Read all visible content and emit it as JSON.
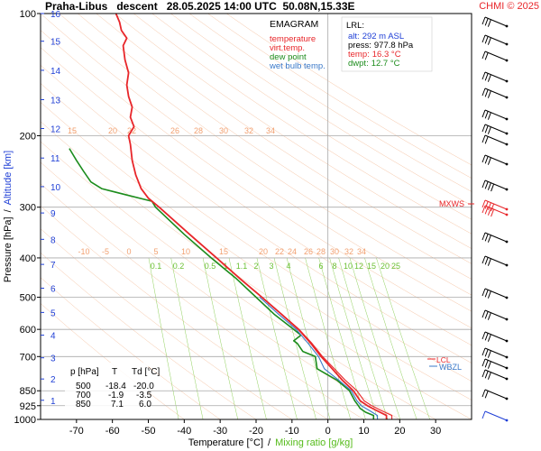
{
  "chart_data": {
    "type": "line",
    "title": "Praha-Libus   descent   28.05.2025 14:00 UTC  50.08N,15.33E",
    "copyright": "CHMI © 2025",
    "diagram_name": "EMAGRAM",
    "legend": [
      {
        "label": "temperature",
        "color": "#e8262a"
      },
      {
        "label": "virt.temp.",
        "color": "#e8262a"
      },
      {
        "label": "dew point",
        "color": "#1c8c1c"
      },
      {
        "label": "wet bulb temp.",
        "color": "#3a78c8"
      }
    ],
    "xlabel": "Temperature [°C]",
    "xlabel_sep": "/",
    "xlabel2": "Mixing ratio [g/kg]",
    "ylabel": "Pressure [hPa]",
    "ylabel_sep": "/",
    "ylabel2": "Altitude [km]",
    "xlim": [
      -80,
      40
    ],
    "ylim_hpa": [
      1000,
      100
    ],
    "y_scale": "log",
    "x_ticks": [
      "-70",
      "-60",
      "-50",
      "-40",
      "-30",
      "-20",
      "-10",
      "0",
      "10",
      "20",
      "30"
    ],
    "x_tick_values": [
      -70,
      -60,
      -50,
      -40,
      -30,
      -20,
      -10,
      0,
      10,
      20,
      30
    ],
    "p_ticks": [
      "100",
      "200",
      "300",
      "400",
      "500",
      "600",
      "700",
      "850",
      "925",
      "1000"
    ],
    "p_tick_values": [
      100,
      200,
      300,
      400,
      500,
      600,
      700,
      850,
      925,
      1000
    ],
    "alt_ticks": [
      "1",
      "2",
      "3",
      "4",
      "5",
      "6",
      "7",
      "8",
      "9",
      "10",
      "11",
      "12",
      "13",
      "14",
      "15",
      "16"
    ],
    "alt_tick_hpa": [
      897,
      795,
      705,
      620,
      545,
      475,
      415,
      360,
      310,
      267,
      227,
      192,
      163,
      138,
      117,
      100
    ],
    "adiabat_labels_top": [
      "15",
      "20",
      "22",
      "26",
      "28",
      "30",
      "32",
      "34"
    ],
    "adiabat_labels_mid": [
      "-10",
      "-5",
      "0",
      "5",
      "10",
      "15",
      "20",
      "22",
      "24",
      "26",
      "28",
      "30",
      "32",
      "34"
    ],
    "mixing_labels": [
      "0.1",
      "0.2",
      "0.5",
      "1",
      "1.1",
      "2",
      "3",
      "4",
      "6",
      "8",
      "10",
      "12",
      "15",
      "20",
      "25"
    ],
    "lrl": {
      "title": "LRL:",
      "alt_label": "alt:",
      "alt": "292 m ASL",
      "press_label": "press:",
      "press": "977.8 hPa",
      "temp_label": "temp:",
      "temp": "16.3 °C",
      "dwpt_label": "dwpt:",
      "dwpt": "12.7 °C"
    },
    "markers": {
      "mxws": "MXWS",
      "lcl": "LCL",
      "wbzl": "WBZL"
    },
    "table": {
      "headers": [
        "p [hPa]",
        "T",
        "Td [°C]"
      ],
      "rows": [
        [
          "500",
          "-18.4",
          "-20.0"
        ],
        [
          "700",
          "-1.9",
          "-3.5"
        ],
        [
          "850",
          "7.1",
          "6.0"
        ]
      ]
    },
    "series": [
      {
        "name": "temperature",
        "color": "#e8262a",
        "points": [
          [
            1000,
            16.3
          ],
          [
            977.8,
            16.3
          ],
          [
            950,
            13.5
          ],
          [
            925,
            11
          ],
          [
            900,
            9
          ],
          [
            850,
            7.1
          ],
          [
            800,
            4
          ],
          [
            750,
            1.2
          ],
          [
            700,
            -1.9
          ],
          [
            650,
            -4.7
          ],
          [
            600,
            -8.2
          ],
          [
            550,
            -13
          ],
          [
            500,
            -18.4
          ],
          [
            450,
            -24.5
          ],
          [
            400,
            -31
          ],
          [
            350,
            -38.5
          ],
          [
            300,
            -47
          ],
          [
            285,
            -50
          ],
          [
            270,
            -52
          ],
          [
            250,
            -53.5
          ],
          [
            230,
            -54.5
          ],
          [
            210,
            -55
          ],
          [
            200,
            -55.5
          ],
          [
            190,
            -54
          ],
          [
            180,
            -55
          ],
          [
            170,
            -54.5
          ],
          [
            160,
            -55.5
          ],
          [
            150,
            -56
          ],
          [
            140,
            -55.5
          ],
          [
            130,
            -56.5
          ],
          [
            120,
            -57
          ],
          [
            115,
            -56
          ],
          [
            110,
            -57.5
          ],
          [
            105,
            -58
          ],
          [
            100,
            -59
          ]
        ]
      },
      {
        "name": "virt.temp.",
        "color": "#e8262a",
        "points": [
          [
            1000,
            17.8
          ],
          [
            977.8,
            17.8
          ],
          [
            950,
            14.8
          ],
          [
            925,
            12.2
          ],
          [
            900,
            10.1
          ],
          [
            850,
            8.1
          ],
          [
            800,
            4.8
          ],
          [
            750,
            1.8
          ],
          [
            700,
            -1.5
          ],
          [
            650,
            -4.4
          ],
          [
            600,
            -8
          ],
          [
            550,
            -12.9
          ],
          [
            500,
            -18.3
          ],
          [
            450,
            -24.4
          ],
          [
            400,
            -31
          ],
          [
            350,
            -38.5
          ],
          [
            300,
            -47
          ],
          [
            285,
            -50
          ]
        ]
      },
      {
        "name": "dew point",
        "color": "#1c8c1c",
        "points": [
          [
            1000,
            12.7
          ],
          [
            977.8,
            12.7
          ],
          [
            960,
            10.5
          ],
          [
            940,
            9
          ],
          [
            925,
            8.5
          ],
          [
            900,
            7.5
          ],
          [
            850,
            6
          ],
          [
            800,
            2.5
          ],
          [
            750,
            -3
          ],
          [
            700,
            -3.5
          ],
          [
            680,
            -7
          ],
          [
            650,
            -8.5
          ],
          [
            640,
            -9.5
          ],
          [
            620,
            -7.5
          ],
          [
            600,
            -9.5
          ],
          [
            550,
            -15
          ],
          [
            500,
            -20
          ],
          [
            450,
            -25.5
          ],
          [
            400,
            -32.5
          ],
          [
            350,
            -40
          ],
          [
            300,
            -48
          ],
          [
            290,
            -49
          ],
          [
            280,
            -56
          ],
          [
            270,
            -63
          ],
          [
            260,
            -66
          ],
          [
            245,
            -68
          ],
          [
            230,
            -70
          ],
          [
            215,
            -72
          ]
        ]
      },
      {
        "name": "wet bulb temp.",
        "color": "#3a78c8",
        "points": [
          [
            1000,
            13.8
          ],
          [
            977.8,
            13.8
          ],
          [
            950,
            11.5
          ],
          [
            925,
            9.3
          ],
          [
            900,
            8.1
          ],
          [
            850,
            6.5
          ],
          [
            800,
            3
          ],
          [
            750,
            -1
          ],
          [
            700,
            -2.6
          ],
          [
            650,
            -5.5
          ],
          [
            600,
            -8.8
          ],
          [
            550,
            -13.8
          ],
          [
            500,
            -19
          ]
        ]
      }
    ]
  }
}
